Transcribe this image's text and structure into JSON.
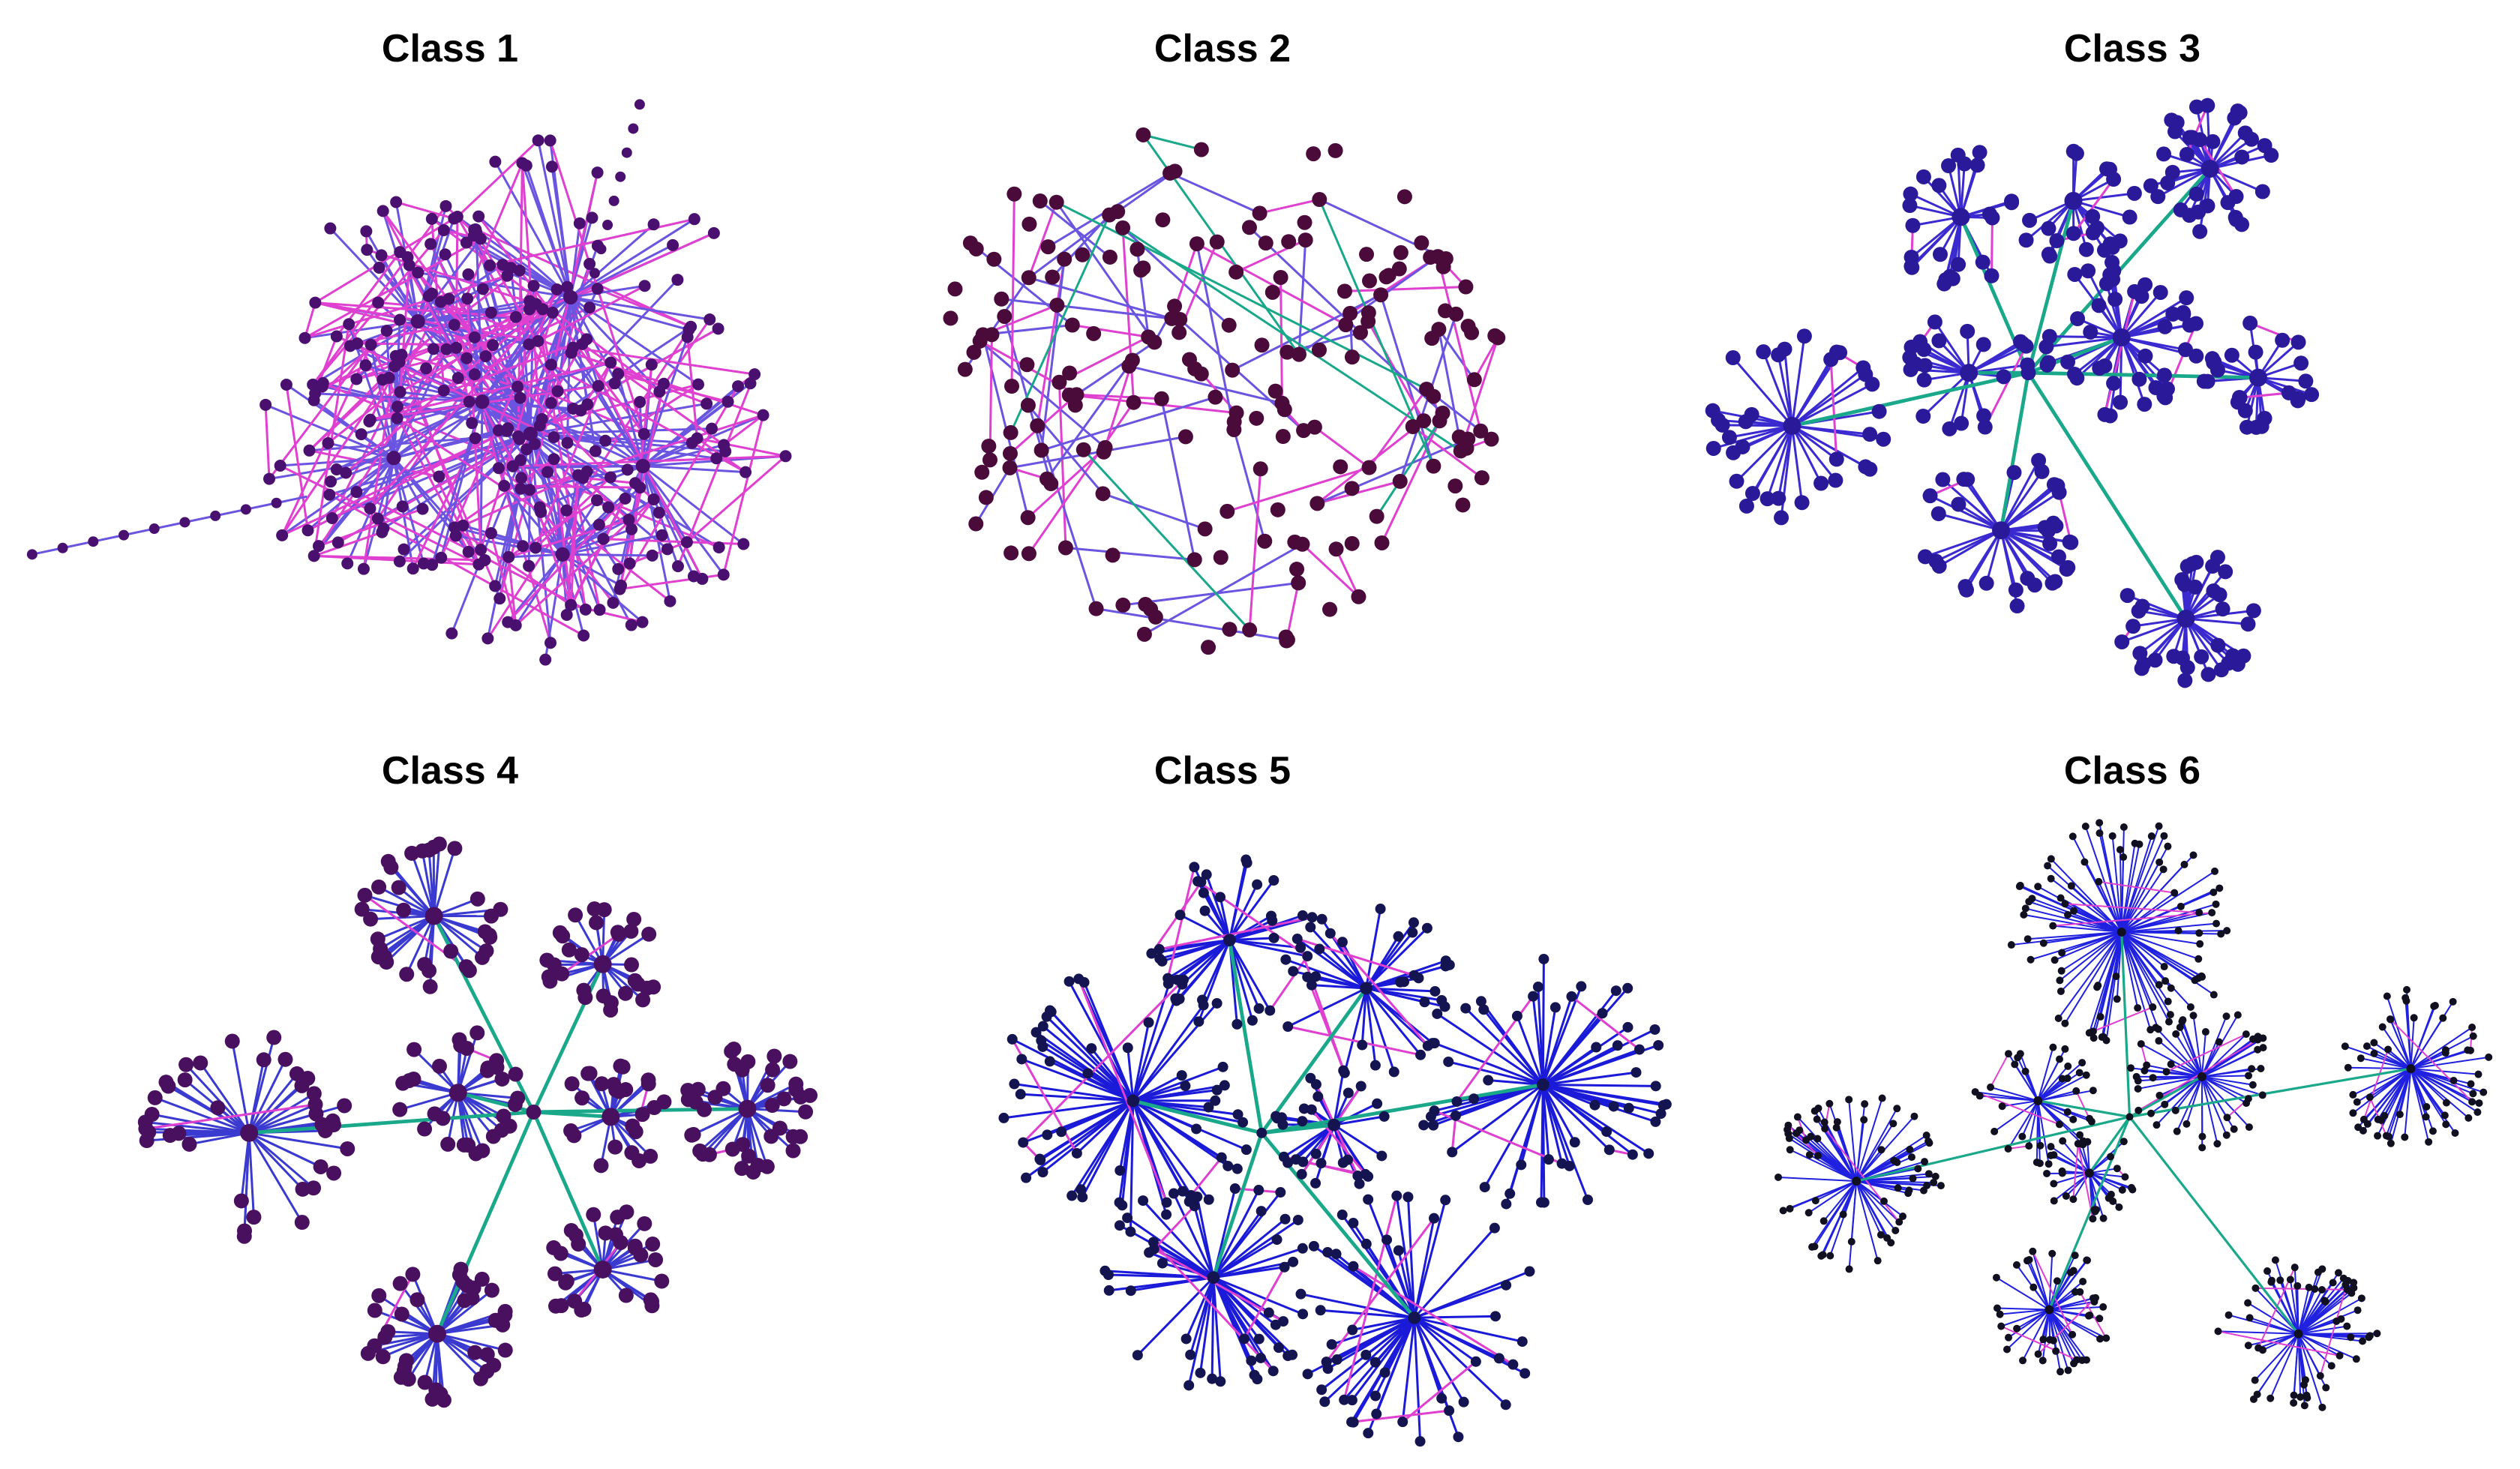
{
  "panels": [
    {
      "title": "Class 1"
    },
    {
      "title": "Class 2"
    },
    {
      "title": "Class 3"
    },
    {
      "title": "Class 4"
    },
    {
      "title": "Class 5"
    },
    {
      "title": "Class 6"
    }
  ]
}
